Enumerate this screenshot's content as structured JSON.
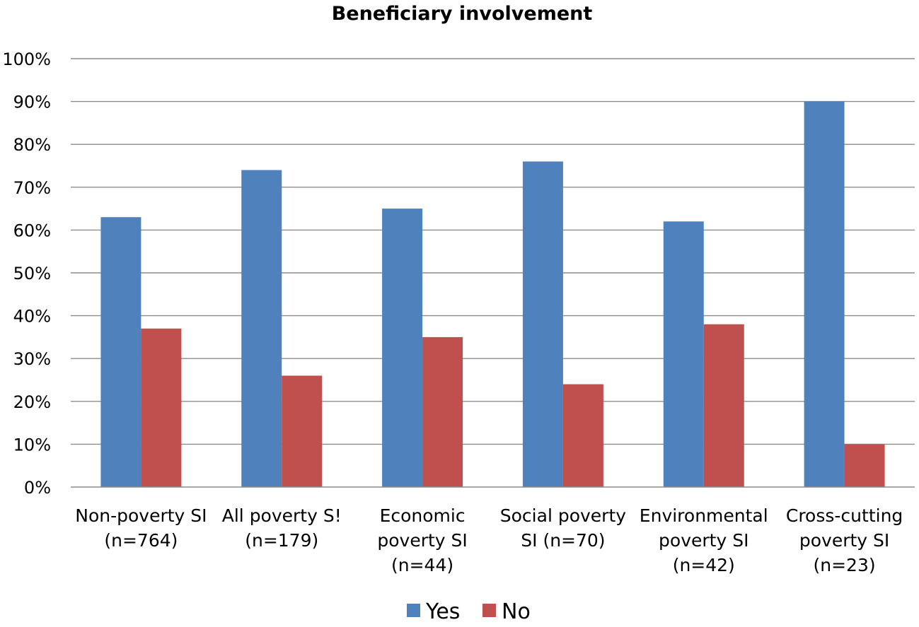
{
  "chart_data": {
    "type": "bar",
    "title": "Beneficiary involvement",
    "xlabel": "",
    "ylabel": "",
    "ylim": [
      0,
      100
    ],
    "ytick_step": 10,
    "ytick_suffix": "%",
    "grid": true,
    "legend_position": "bottom-center",
    "categories": [
      [
        "Non-poverty SI",
        "(n=764)"
      ],
      [
        "All poverty S!",
        "(n=179)"
      ],
      [
        "Economic",
        "poverty SI",
        "(n=44)"
      ],
      [
        "Social poverty",
        "SI (n=70)"
      ],
      [
        "Environmental",
        "poverty SI",
        "(n=42)"
      ],
      [
        "Cross-cutting",
        "poverty SI",
        "(n=23)"
      ]
    ],
    "series": [
      {
        "name": "Yes",
        "color": "#4f81bd",
        "values": [
          63,
          74,
          65,
          76,
          62,
          90
        ]
      },
      {
        "name": "No",
        "color": "#c0504d",
        "values": [
          37,
          26,
          35,
          24,
          38,
          10
        ]
      }
    ]
  }
}
